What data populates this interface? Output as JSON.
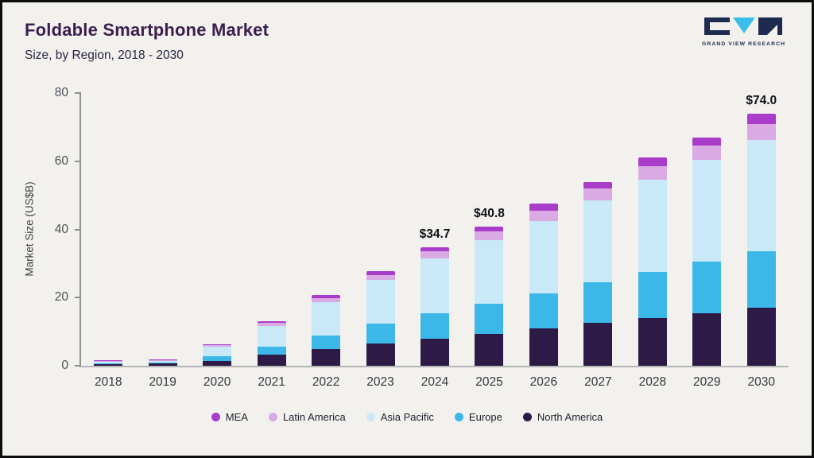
{
  "header": {
    "title": "Foldable Smartphone Market",
    "subtitle": "Size, by Region, 2018 - 2030"
  },
  "logo": {
    "text": "GRAND VIEW RESEARCH"
  },
  "chart_data": {
    "type": "bar",
    "stacked": true,
    "title": "Foldable Smartphone Market Size, by Region, 2018 - 2030",
    "ylabel": "Market Size (US$B)",
    "ylim": [
      0,
      80
    ],
    "yticks": [
      0,
      20,
      40,
      60,
      80
    ],
    "grid": false,
    "legend_position": "bottom",
    "categories": [
      "2018",
      "2019",
      "2020",
      "2021",
      "2022",
      "2023",
      "2024",
      "2025",
      "2026",
      "2027",
      "2028",
      "2029",
      "2030"
    ],
    "series": [
      {
        "name": "North America",
        "color": "#2e1a47",
        "values": [
          0.5,
          0.6,
          1.5,
          3.2,
          5.0,
          6.5,
          8.0,
          9.4,
          11.0,
          12.5,
          14.0,
          15.5,
          17.0
        ]
      },
      {
        "name": "Europe",
        "color": "#3bb8e8",
        "values": [
          0.3,
          0.4,
          1.2,
          2.3,
          3.8,
          5.8,
          7.5,
          8.9,
          10.3,
          12.0,
          13.5,
          15.0,
          16.5
        ]
      },
      {
        "name": "Asia Pacific",
        "color": "#c9e9f8",
        "values": [
          0.6,
          0.6,
          2.9,
          6.2,
          9.9,
          12.8,
          15.9,
          18.6,
          21.2,
          24.0,
          27.0,
          29.8,
          32.8
        ]
      },
      {
        "name": "Latin America",
        "color": "#d9aae4",
        "values": [
          0.1,
          0.1,
          0.4,
          0.8,
          1.2,
          1.6,
          2.2,
          2.6,
          3.0,
          3.5,
          4.0,
          4.2,
          4.7
        ]
      },
      {
        "name": "MEA",
        "color": "#a93cc9",
        "values": [
          0.1,
          0.1,
          0.3,
          0.5,
          0.8,
          1.1,
          1.1,
          1.3,
          2.0,
          2.0,
          2.5,
          2.5,
          3.0
        ]
      }
    ],
    "value_labels": {
      "2024": "$34.7",
      "2025": "$40.8",
      "2030": "$74.0"
    },
    "legend": [
      "MEA",
      "Latin America",
      "Asia Pacific",
      "Europe",
      "North America"
    ]
  }
}
